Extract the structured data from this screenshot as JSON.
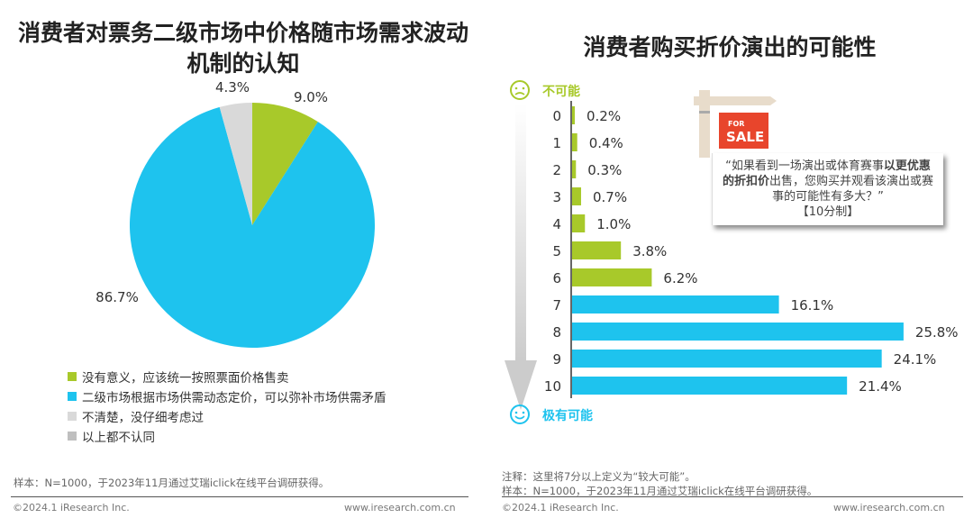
{
  "chart_data": [
    {
      "type": "pie",
      "title": "消费者对票务二级市场中价格随市场需求波动机制的认知",
      "slices": [
        {
          "label": "没有意义，应该统一按照票面价格售卖",
          "value": 9.0,
          "display": "9.0%",
          "color": "#a8c92a"
        },
        {
          "label": "二级市场根据市场供需动态定价，可以弥补市场供需矛盾",
          "value": 86.7,
          "display": "86.7%",
          "color": "#1ec3ee"
        },
        {
          "label": "不清楚，没仔细考虑过",
          "value": 4.3,
          "display": "4.3%",
          "color": "#d9d9d9"
        },
        {
          "label": "以上都不认同",
          "value": 0,
          "display": "",
          "color": "#bfbfbf"
        }
      ]
    },
    {
      "type": "bar",
      "orientation": "horizontal",
      "title": "消费者购买折价演出的可能性",
      "categories": [
        "0",
        "1",
        "2",
        "3",
        "4",
        "5",
        "6",
        "7",
        "8",
        "9",
        "10"
      ],
      "values": [
        0.2,
        0.4,
        0.3,
        0.7,
        1.0,
        3.8,
        6.2,
        16.1,
        25.8,
        24.1,
        21.4
      ],
      "labels": [
        "0.2%",
        "0.4%",
        "0.3%",
        "0.7%",
        "1.0%",
        "3.8%",
        "6.2%",
        "16.1%",
        "25.8%",
        "24.1%",
        "21.4%"
      ],
      "colors": {
        "low": "#a8c92a",
        "high": "#1ec3ee"
      },
      "high_threshold": 7,
      "top_label": "不可能",
      "bottom_label": "极有可能"
    }
  ],
  "left": {
    "note": "样本：N=1000，于2023年11月通过艾瑞iclick在线平台调研获得。"
  },
  "right": {
    "quote_pre": "“如果看到一场演出或体育赛事",
    "quote_bold1": "以更优惠的折扣价",
    "quote_post": "出售，您购买并观看该演出或赛事的可能性有多大？”",
    "quote_scale": "【10分制】",
    "sign_for": "FOR",
    "sign_sale": "SALE",
    "note1": "注释：这里将7分以上定义为“较大可能”。",
    "note2": "样本：N=1000，于2023年11月通过艾瑞iclick在线平台调研获得。"
  },
  "footer": {
    "copyright": "©2024.1 iResearch Inc.",
    "url": "www.iresearch.com.cn"
  }
}
